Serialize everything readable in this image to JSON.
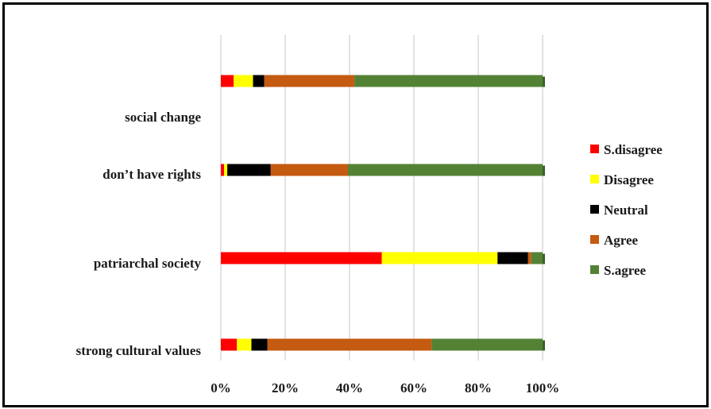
{
  "chart_data": {
    "type": "bar",
    "orientation": "horizontal",
    "stacked": true,
    "percent_stacked": true,
    "categories": [
      "strong cultural values",
      "patriarchal society",
      "don’t have rights",
      "social change"
    ],
    "series": [
      {
        "name": "S.disagree",
        "color": "#ff0000",
        "values": [
          5,
          50,
          1,
          4
        ]
      },
      {
        "name": "Disagree",
        "color": "#ffff00",
        "values": [
          4.5,
          36,
          1,
          6
        ]
      },
      {
        "name": "Neutral",
        "color": "#000000",
        "values": [
          5,
          9.5,
          13.5,
          3.5
        ]
      },
      {
        "name": "Agree",
        "color": "#c55a11",
        "values": [
          51,
          1,
          24,
          28
        ]
      },
      {
        "name": "S.agree",
        "color": "#548235",
        "values": [
          34.5,
          3.5,
          60.5,
          58.5
        ]
      }
    ],
    "x_ticks": [
      "0%",
      "20%",
      "40%",
      "60%",
      "80%",
      "100%"
    ],
    "xlim": [
      0,
      100
    ],
    "grid": "vertical",
    "legend_position": "right"
  }
}
